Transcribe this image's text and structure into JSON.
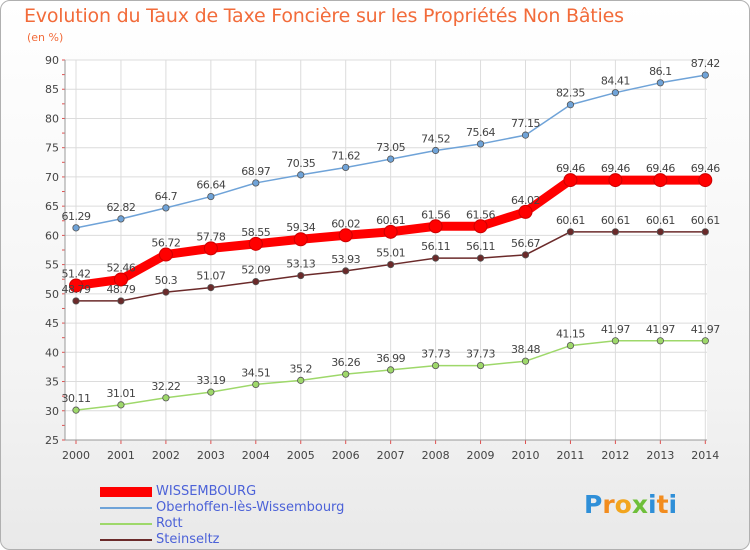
{
  "title": "Evolution du Taux de Taxe Foncière sur les Propriétés Non Bâties",
  "unit_label": "(en %)",
  "logo_text": "Proxiti",
  "colors": {
    "title": "#f26b3a",
    "legend_text": "#4c62d8",
    "wissembourg": "#ff0000",
    "oberhoffen": "#6fa3d8",
    "rott": "#9ed86a",
    "steinseltz": "#6b2a2a"
  },
  "chart_data": {
    "type": "line",
    "title": "Evolution du Taux de Taxe Foncière sur les Propriétés Non Bâties",
    "ylabel": "(en %)",
    "xlabel": "",
    "ylim": [
      25,
      90
    ],
    "yticks": [
      25,
      30,
      35,
      40,
      45,
      50,
      55,
      60,
      65,
      70,
      75,
      80,
      85,
      90
    ],
    "grid": true,
    "legend_position": "bottom-left",
    "x": [
      "2000",
      "2001",
      "2002",
      "2003",
      "2004",
      "2005",
      "2006",
      "2007",
      "2008",
      "2009",
      "2010",
      "2011",
      "2012",
      "2013",
      "2014"
    ],
    "series": [
      {
        "name": "WISSEMBOURG",
        "color": "#ff0000",
        "values": [
          51.42,
          52.46,
          56.72,
          57.78,
          58.55,
          59.34,
          60.02,
          60.61,
          61.56,
          61.56,
          64.02,
          69.46,
          69.46,
          69.46,
          69.46
        ],
        "labels": [
          "51.42",
          "52.46",
          "56.72",
          "57.78",
          "58.55",
          "59.34",
          "60.02",
          "60.61",
          "61.56",
          "61.56",
          "64.02",
          "69.46",
          "69.46",
          "69.46",
          "69.46"
        ]
      },
      {
        "name": "Oberhoffen-lès-Wissembourg",
        "color": "#6fa3d8",
        "values": [
          61.29,
          62.82,
          64.7,
          66.64,
          68.97,
          70.35,
          71.62,
          73.05,
          74.52,
          75.64,
          77.15,
          82.35,
          84.41,
          86.1,
          87.42
        ],
        "labels": [
          "61.29",
          "62.82",
          "64.7",
          "66.64",
          "68.97",
          "70.35",
          "71.62",
          "73.05",
          "74.52",
          "75.64",
          "77.15",
          "82.35",
          "84.41",
          "86.1",
          "87.42"
        ]
      },
      {
        "name": "Rott",
        "color": "#9ed86a",
        "values": [
          30.11,
          31.01,
          32.22,
          33.19,
          34.51,
          35.2,
          36.26,
          36.99,
          37.73,
          37.73,
          38.48,
          41.15,
          41.97,
          41.97,
          41.97
        ],
        "labels": [
          "30.11",
          "31.01",
          "32.22",
          "33.19",
          "34.51",
          "35.2",
          "36.26",
          "36.99",
          "37.73",
          "37.73",
          "38.48",
          "41.15",
          "41.97",
          "41.97",
          "41.97"
        ]
      },
      {
        "name": "Steinseltz",
        "color": "#6b2a2a",
        "values": [
          48.79,
          48.79,
          50.3,
          51.07,
          52.09,
          53.13,
          53.93,
          55.01,
          56.11,
          56.11,
          56.67,
          60.61,
          60.61,
          60.61,
          60.61
        ],
        "labels": [
          "48.79",
          "48.79",
          "50.3",
          "51.07",
          "52.09",
          "53.13",
          "53.93",
          "55.01",
          "56.11",
          "56.11",
          "56.67",
          "60.61",
          "60.61",
          "60.61",
          "60.61"
        ]
      }
    ]
  }
}
